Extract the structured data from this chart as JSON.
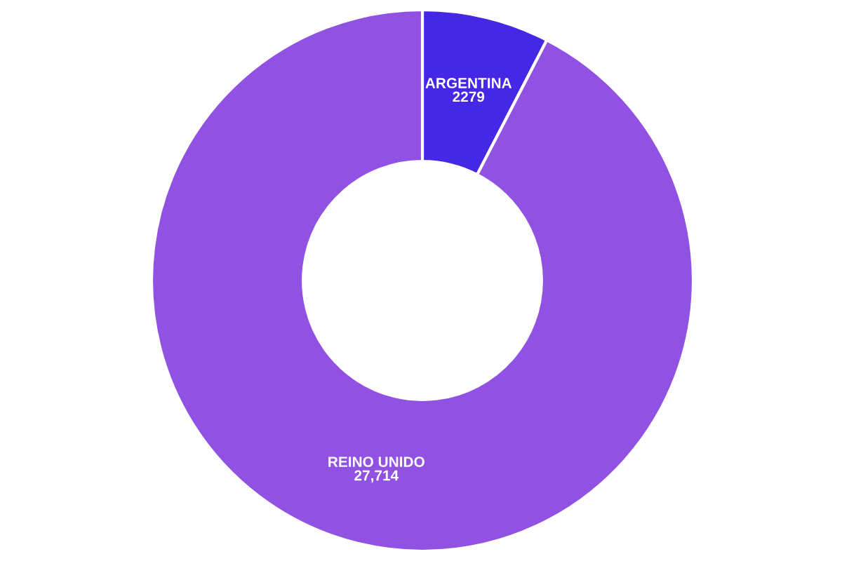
{
  "chart_data": {
    "type": "donut",
    "categories": [
      "ARGENTINA",
      "REINO UNIDO"
    ],
    "values": [
      2279,
      27714
    ],
    "value_labels": [
      "2279",
      "27,714"
    ],
    "colors": [
      "#4527e6",
      "#9152e3"
    ]
  }
}
